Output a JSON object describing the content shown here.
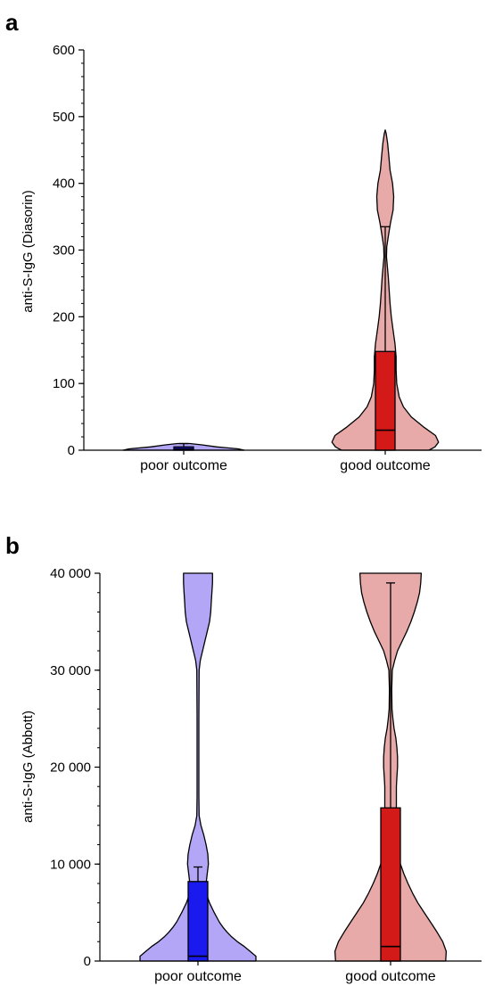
{
  "chart_data": [
    {
      "type": "violin",
      "panel_label": "a",
      "ylabel": "anti-S-IgG (Diasorin)",
      "ylim": [
        0,
        600
      ],
      "yticks": [
        0,
        100,
        200,
        300,
        400,
        500,
        600
      ],
      "ytick_labels": [
        "0",
        "100",
        "200",
        "300",
        "400",
        "500",
        "600"
      ],
      "categories": [
        "poor outcome",
        "good outcome"
      ],
      "groups": [
        {
          "name": "poor outcome",
          "fill_color": "#b3a6f7",
          "box_color": "#1a1aee",
          "box": {
            "q1": 0,
            "median": 2,
            "q3": 5,
            "whisker_low": 0,
            "whisker_high": 10
          },
          "density": [
            [
              0,
              1.0
            ],
            [
              2,
              0.9
            ],
            [
              5,
              0.55
            ],
            [
              8,
              0.3
            ],
            [
              10,
              0.1
            ]
          ]
        },
        {
          "name": "good outcome",
          "fill_color": "#e8a9a9",
          "box_color": "#d41919",
          "box": {
            "q1": 0,
            "median": 30,
            "q3": 148,
            "whisker_low": 0,
            "whisker_high": 335
          },
          "density": [
            [
              0,
              0.72
            ],
            [
              5,
              0.82
            ],
            [
              12,
              0.88
            ],
            [
              22,
              0.83
            ],
            [
              35,
              0.63
            ],
            [
              50,
              0.43
            ],
            [
              65,
              0.3
            ],
            [
              80,
              0.23
            ],
            [
              100,
              0.19
            ],
            [
              120,
              0.18
            ],
            [
              140,
              0.18
            ],
            [
              160,
              0.16
            ],
            [
              180,
              0.13
            ],
            [
              200,
              0.1
            ],
            [
              220,
              0.08
            ],
            [
              240,
              0.065
            ],
            [
              260,
              0.05
            ],
            [
              275,
              0.035
            ],
            [
              290,
              0.02
            ],
            [
              305,
              0.025
            ],
            [
              320,
              0.05
            ],
            [
              340,
              0.085
            ],
            [
              360,
              0.13
            ],
            [
              380,
              0.14
            ],
            [
              400,
              0.12
            ],
            [
              420,
              0.08
            ],
            [
              440,
              0.06
            ],
            [
              460,
              0.04
            ],
            [
              475,
              0.015
            ],
            [
              480,
              0
            ]
          ]
        }
      ]
    },
    {
      "type": "violin",
      "panel_label": "b",
      "ylabel": "anti-S-IgG (Abbott)",
      "ylim": [
        0,
        40000
      ],
      "yticks": [
        0,
        10000,
        20000,
        30000,
        40000
      ],
      "ytick_labels": [
        "0",
        "10 000",
        "20 000",
        "30 000",
        "40 000"
      ],
      "categories": [
        "poor outcome",
        "good outcome"
      ],
      "groups": [
        {
          "name": "poor outcome",
          "fill_color": "#b3a6f7",
          "box_color": "#1a1aee",
          "box": {
            "q1": 0,
            "median": 500,
            "q3": 8200,
            "whisker_low": 0,
            "whisker_high": 9700
          },
          "density": [
            [
              0,
              1.0
            ],
            [
              500,
              1.0
            ],
            [
              1000,
              0.9
            ],
            [
              1500,
              0.8
            ],
            [
              2000,
              0.68
            ],
            [
              2500,
              0.58
            ],
            [
              3000,
              0.5
            ],
            [
              3500,
              0.43
            ],
            [
              4000,
              0.37
            ],
            [
              5000,
              0.28
            ],
            [
              6000,
              0.2
            ],
            [
              7000,
              0.14
            ],
            [
              8000,
              0.14
            ],
            [
              9000,
              0.16
            ],
            [
              10000,
              0.18
            ],
            [
              11000,
              0.17
            ],
            [
              12000,
              0.14
            ],
            [
              13000,
              0.1
            ],
            [
              14000,
              0.05
            ],
            [
              15000,
              0.02
            ],
            [
              17000,
              0.015
            ],
            [
              20000,
              0.015
            ],
            [
              25000,
              0.015
            ],
            [
              30000,
              0.02
            ],
            [
              31000,
              0.04
            ],
            [
              32000,
              0.08
            ],
            [
              33000,
              0.12
            ],
            [
              34000,
              0.16
            ],
            [
              35000,
              0.2
            ],
            [
              36000,
              0.22
            ],
            [
              37000,
              0.23
            ],
            [
              38000,
              0.24
            ],
            [
              39000,
              0.25
            ],
            [
              40000,
              0.25
            ]
          ]
        },
        {
          "name": "good outcome",
          "fill_color": "#e8a9a9",
          "box_color": "#d41919",
          "box": {
            "q1": 0,
            "median": 1500,
            "q3": 15800,
            "whisker_low": 0,
            "whisker_high": 39000
          },
          "density": [
            [
              0,
              0.95
            ],
            [
              1000,
              0.96
            ],
            [
              2000,
              0.9
            ],
            [
              3000,
              0.8
            ],
            [
              4000,
              0.69
            ],
            [
              5000,
              0.58
            ],
            [
              6000,
              0.47
            ],
            [
              7000,
              0.38
            ],
            [
              8000,
              0.3
            ],
            [
              9000,
              0.23
            ],
            [
              10000,
              0.17
            ],
            [
              11000,
              0.12
            ],
            [
              12000,
              0.1
            ],
            [
              13000,
              0.09
            ],
            [
              14000,
              0.09
            ],
            [
              15000,
              0.09
            ],
            [
              16000,
              0.1
            ],
            [
              17000,
              0.1
            ],
            [
              18000,
              0.1
            ],
            [
              19000,
              0.11
            ],
            [
              20000,
              0.12
            ],
            [
              21000,
              0.12
            ],
            [
              22000,
              0.11
            ],
            [
              23000,
              0.09
            ],
            [
              24000,
              0.06
            ],
            [
              25000,
              0.04
            ],
            [
              26000,
              0.025
            ],
            [
              28000,
              0.02
            ],
            [
              30000,
              0.03
            ],
            [
              31000,
              0.07
            ],
            [
              32000,
              0.12
            ],
            [
              33000,
              0.2
            ],
            [
              34000,
              0.28
            ],
            [
              35000,
              0.35
            ],
            [
              36000,
              0.41
            ],
            [
              37000,
              0.46
            ],
            [
              38000,
              0.5
            ],
            [
              39000,
              0.52
            ],
            [
              40000,
              0.53
            ]
          ]
        }
      ]
    }
  ]
}
